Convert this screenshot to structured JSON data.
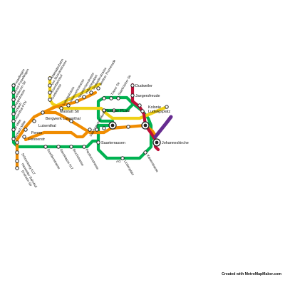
{
  "map": {
    "lines": [
      {
        "name": "green",
        "color": "#00b251"
      },
      {
        "name": "yellow",
        "color": "#f0d016"
      },
      {
        "name": "orange",
        "color": "#f08c00"
      },
      {
        "name": "crimson",
        "color": "#bd1038"
      },
      {
        "name": "purple",
        "color": "#662c90"
      }
    ],
    "stations": {
      "green_west": [
        "Furpeltingen",
        "Bous Furpeltingen",
        "Karlsbrunn Str",
        "Hauptstrasse",
        "Burbach",
        "Luisenthal PTN",
        "BI Mitte",
        "Burbach Mitte",
        "Ludweilerbahnhof"
      ],
      "yellow_north": [
        "Malstatterbahn",
        "Von Bounanstrasse",
        "Eisenbahnhof",
        "Goldstrasse"
      ],
      "diagonal": [
        "Ludwigstrasse",
        "Sauerwehrstrasse",
        "Neunkirchenstrasse",
        "Industriegebiet",
        "Dudweilerstrasse",
        "Berliner Promenade"
      ],
      "upper_right": [
        "Trierer Str",
        "Saarbrücker Str"
      ],
      "main": [
        "Malstatt Str",
        "Bergwerk Luisenthal",
        "Luisenthal",
        "Fenne",
        "Fennerstr",
        "Bahnhof Str",
        "Eschberg",
        "Hauptbahnhof"
      ],
      "named": [
        "Dudweiler",
        "Jaegersfreude",
        "Kolonie",
        "Ludwigsplatz",
        "Johanneskirche",
        "Roemer PLatz",
        "Saarterrassen",
        "Kleinblittersdorf"
      ],
      "south": [
        "Schoenberg KLT",
        "Hanweiler Bahnhof",
        "Ensheim Str",
        "Gueldenstrasse",
        "Gierstrasse KLT",
        "Bruchstrasse",
        "Paulinenstrasse",
        "Lindenplatz",
        "Kaiserstrasse",
        "Fuchshuebel",
        "Hanns Martin",
        "Hochstrasse",
        "Universitaet",
        "Saarbruecker Markt"
      ],
      "fragments": [
        "Sa",
        "S",
        "AG"
      ]
    }
  },
  "credit": "Created with MetroMapMaker.com"
}
